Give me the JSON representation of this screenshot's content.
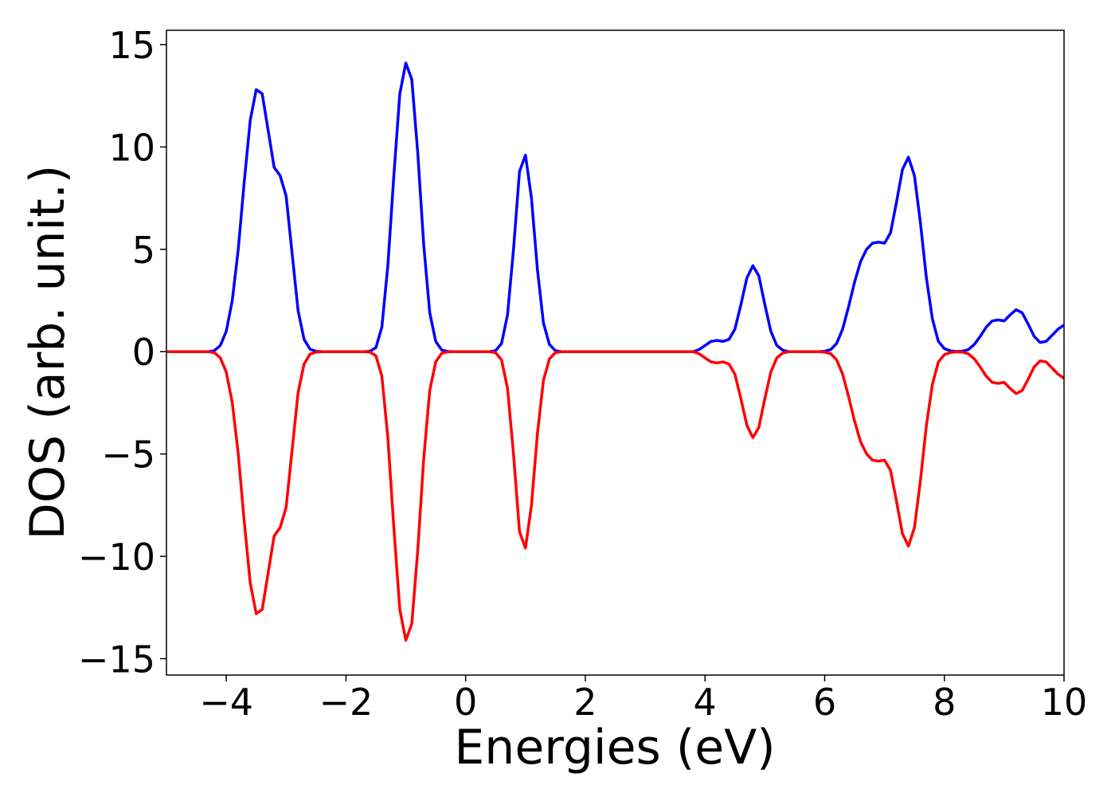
{
  "chart_data": {
    "type": "line",
    "xlabel": "Energies (eV)",
    "ylabel": "DOS (arb. unit.)",
    "x": [
      -5,
      -4.9,
      -4.8,
      -4.7,
      -4.6,
      -4.5,
      -4.4,
      -4.3,
      -4.2,
      -4.1,
      -4,
      -3.9,
      -3.8,
      -3.7,
      -3.6,
      -3.5,
      -3.4,
      -3.3,
      -3.2,
      -3.1,
      -3,
      -2.9,
      -2.8,
      -2.7,
      -2.6,
      -2.5,
      -2.4,
      -2.3,
      -2.2,
      -2.1,
      -2,
      -1.9,
      -1.8,
      -1.7,
      -1.6,
      -1.5,
      -1.4,
      -1.3,
      -1.2,
      -1.1,
      -1,
      -0.9,
      -0.8,
      -0.7,
      -0.6,
      -0.5,
      -0.4,
      -0.3,
      -0.2,
      -0.1,
      0,
      0.1,
      0.2,
      0.3,
      0.4,
      0.5,
      0.6,
      0.7,
      0.8,
      0.9,
      1,
      1.1,
      1.2,
      1.3,
      1.4,
      1.5,
      1.6,
      1.7,
      1.8,
      1.9,
      2,
      2.1,
      2.2,
      2.3,
      2.4,
      2.5,
      2.6,
      2.7,
      2.8,
      2.9,
      3,
      3.1,
      3.2,
      3.3,
      3.4,
      3.5,
      3.6,
      3.7,
      3.8,
      3.9,
      4,
      4.1,
      4.2,
      4.3,
      4.4,
      4.5,
      4.6,
      4.7,
      4.8,
      4.9,
      5,
      5.1,
      5.2,
      5.3,
      5.4,
      5.5,
      5.6,
      5.7,
      5.8,
      5.9,
      6,
      6.1,
      6.2,
      6.3,
      6.4,
      6.5,
      6.6,
      6.7,
      6.8,
      6.9,
      7,
      7.1,
      7.2,
      7.3,
      7.4,
      7.5,
      7.6,
      7.7,
      7.8,
      7.9,
      8,
      8.1,
      8.2,
      8.3,
      8.4,
      8.5,
      8.6,
      8.7,
      8.8,
      8.9,
      9,
      9.1,
      9.2,
      9.3,
      9.4,
      9.5,
      9.6,
      9.7,
      9.8,
      9.9,
      10
    ],
    "series": [
      {
        "color": "#0000ff",
        "values": [
          0,
          0,
          0,
          0,
          0,
          0,
          0,
          0,
          0.05,
          0.3,
          1.0,
          2.5,
          5.0,
          8.3,
          11.3,
          12.8,
          12.6,
          10.8,
          9.0,
          8.6,
          7.6,
          4.8,
          2.0,
          0.6,
          0.12,
          0.02,
          0,
          0,
          0,
          0,
          0,
          0,
          0,
          0,
          0.02,
          0.2,
          1.2,
          4.2,
          8.6,
          12.6,
          14.1,
          13.3,
          9.7,
          5.2,
          1.9,
          0.5,
          0.08,
          0.01,
          0,
          0,
          0,
          0,
          0,
          0,
          0,
          0.05,
          0.4,
          1.8,
          5.0,
          8.8,
          9.6,
          7.5,
          4.0,
          1.4,
          0.35,
          0.05,
          0,
          0,
          0,
          0,
          0,
          0,
          0,
          0,
          0,
          0,
          0,
          0,
          0,
          0,
          0,
          0,
          0,
          0,
          0,
          0,
          0,
          0,
          0,
          0.1,
          0.3,
          0.5,
          0.55,
          0.5,
          0.6,
          1.1,
          2.3,
          3.6,
          4.2,
          3.7,
          2.3,
          1.0,
          0.3,
          0.07,
          0,
          0,
          0,
          0,
          0,
          0,
          0.02,
          0.1,
          0.4,
          1.1,
          2.2,
          3.4,
          4.4,
          5.0,
          5.3,
          5.35,
          5.3,
          5.8,
          7.3,
          8.9,
          9.5,
          8.6,
          6.3,
          3.6,
          1.6,
          0.5,
          0.15,
          0.04,
          0.01,
          0.02,
          0.1,
          0.35,
          0.75,
          1.2,
          1.5,
          1.55,
          1.5,
          1.8,
          2.05,
          1.9,
          1.35,
          0.75,
          0.45,
          0.5,
          0.8,
          1.1,
          1.3
        ]
      },
      {
        "color": "#ff0000",
        "values": [
          0,
          0,
          0,
          0,
          0,
          0,
          0,
          0,
          -0.05,
          -0.3,
          -1.0,
          -2.5,
          -5.0,
          -8.3,
          -11.3,
          -12.8,
          -12.6,
          -10.8,
          -9.0,
          -8.6,
          -7.6,
          -4.8,
          -2.0,
          -0.6,
          -0.12,
          -0.02,
          0,
          0,
          0,
          0,
          0,
          0,
          0,
          0,
          -0.02,
          -0.2,
          -1.2,
          -4.2,
          -8.6,
          -12.6,
          -14.1,
          -13.3,
          -9.7,
          -5.2,
          -1.9,
          -0.5,
          -0.08,
          -0.01,
          0,
          0,
          0,
          0,
          0,
          0,
          0,
          -0.05,
          -0.4,
          -1.8,
          -5.0,
          -8.8,
          -9.6,
          -7.5,
          -4.0,
          -1.4,
          -0.35,
          -0.05,
          0,
          0,
          0,
          0,
          0,
          0,
          0,
          0,
          0,
          0,
          0,
          0,
          0,
          0,
          0,
          0,
          0,
          0,
          0,
          0,
          0,
          0,
          0,
          -0.1,
          -0.3,
          -0.5,
          -0.55,
          -0.5,
          -0.6,
          -1.1,
          -2.3,
          -3.6,
          -4.2,
          -3.7,
          -2.3,
          -1.0,
          -0.3,
          -0.07,
          0,
          0,
          0,
          0,
          0,
          0,
          -0.02,
          -0.1,
          -0.4,
          -1.1,
          -2.2,
          -3.4,
          -4.4,
          -5.0,
          -5.3,
          -5.35,
          -5.3,
          -5.8,
          -7.3,
          -8.9,
          -9.5,
          -8.6,
          -6.3,
          -3.6,
          -1.6,
          -0.5,
          -0.15,
          -0.04,
          -0.01,
          -0.02,
          -0.1,
          -0.35,
          -0.75,
          -1.2,
          -1.5,
          -1.55,
          -1.5,
          -1.8,
          -2.05,
          -1.9,
          -1.35,
          -0.75,
          -0.45,
          -0.5,
          -0.8,
          -1.1,
          -1.3
        ]
      }
    ],
    "xlim": [
      -5,
      10
    ],
    "xticks": [
      {
        "value": -4,
        "label": "−4"
      },
      {
        "value": -2,
        "label": "−2"
      },
      0,
      2,
      4,
      6,
      8,
      10
    ],
    "ylim": [
      -15.8,
      15.7
    ],
    "yticks": [
      {
        "value": -15,
        "label": "−15"
      },
      {
        "value": -10,
        "label": "−10"
      },
      {
        "value": -5,
        "label": "−5"
      },
      0,
      5,
      10,
      15
    ]
  }
}
